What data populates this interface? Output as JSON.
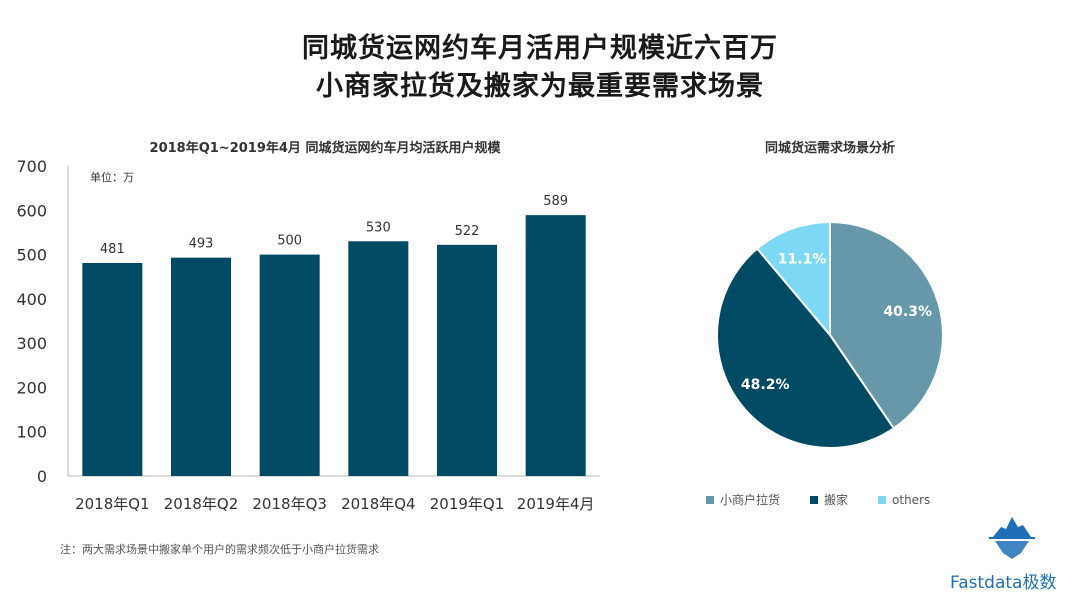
{
  "header": {
    "title_line1": "同城货运网约车月活用户规模近六百万",
    "title_line2": "小商家拉货及搬家为最重要需求场景"
  },
  "footnote": "注：两大需求场景中搬家单个用户的需求频次低于小商户拉货需求",
  "brand": {
    "name": "Fastdata极数",
    "logo_icon": "iceberg-logo-icon",
    "color": "#1f6fb6"
  },
  "chart_data": [
    {
      "type": "bar",
      "title": "2018年Q1~2019年4月 同城货运网约车月均活跃用户规模",
      "unit": "单位：万",
      "categories": [
        "2018年Q1",
        "2018年Q2",
        "2018年Q3",
        "2018年Q4",
        "2019年Q1",
        "2019年4月"
      ],
      "values": [
        481,
        493,
        500,
        530,
        522,
        589
      ],
      "ylim": [
        0,
        700
      ],
      "yticks": [
        0,
        100,
        200,
        300,
        400,
        500,
        600,
        700
      ],
      "grid": false,
      "color": "#004a63"
    },
    {
      "type": "pie",
      "title": "同城货运需求场景分析",
      "slices": [
        {
          "label": "小商户拉货",
          "value": 40.3,
          "display": "40.3%",
          "color": "#6698a9"
        },
        {
          "label": "搬家",
          "value": 48.2,
          "display": "48.2%",
          "color": "#004a63"
        },
        {
          "label": "others",
          "value": 11.1,
          "display": "11.1%",
          "color": "#7dd8f6"
        }
      ],
      "legend_position": "bottom"
    }
  ]
}
